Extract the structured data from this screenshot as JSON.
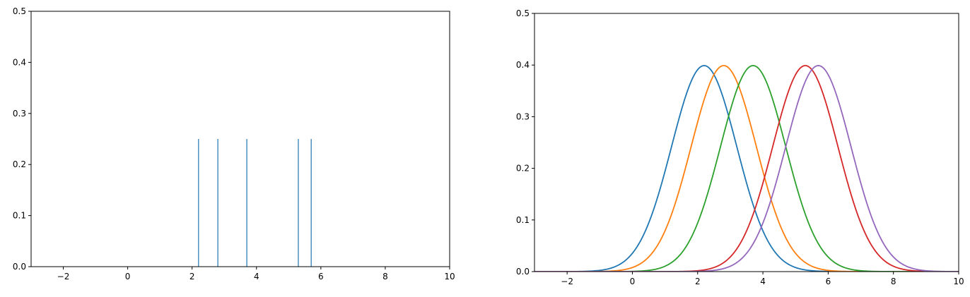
{
  "chart_data": [
    {
      "type": "rug",
      "grid": false,
      "xlim": [
        -3,
        10
      ],
      "ylim": [
        0,
        0.5
      ],
      "xticks": [
        -2,
        0,
        2,
        4,
        6,
        8,
        10
      ],
      "xtick_labels": [
        "−2",
        "0",
        "2",
        "4",
        "6",
        "8",
        "10"
      ],
      "yticks": [
        0.0,
        0.1,
        0.2,
        0.3,
        0.4,
        0.5
      ],
      "ytick_labels": [
        "0.0",
        "0.1",
        "0.2",
        "0.3",
        "0.4",
        "0.5"
      ],
      "color": "#1f77b4",
      "x": [
        2.2,
        2.8,
        3.7,
        5.3,
        5.7
      ],
      "height": 0.25
    },
    {
      "type": "line",
      "grid": false,
      "xlim": [
        -3,
        10
      ],
      "ylim": [
        0,
        0.5
      ],
      "xticks": [
        -2,
        0,
        2,
        4,
        6,
        8,
        10
      ],
      "xtick_labels": [
        "−2",
        "0",
        "2",
        "4",
        "6",
        "8",
        "10"
      ],
      "yticks": [
        0.0,
        0.1,
        0.2,
        0.3,
        0.4,
        0.5
      ],
      "ytick_labels": [
        "0.0",
        "0.1",
        "0.2",
        "0.3",
        "0.4",
        "0.5"
      ],
      "curve": "normal_pdf",
      "sigma": 1.0,
      "series": [
        {
          "mean": 2.2,
          "color": "#1f77b4"
        },
        {
          "mean": 2.8,
          "color": "#ff7f0e"
        },
        {
          "mean": 3.7,
          "color": "#2ca02c"
        },
        {
          "mean": 5.3,
          "color": "#d62728"
        },
        {
          "mean": 5.7,
          "color": "#9467bd"
        }
      ]
    }
  ]
}
